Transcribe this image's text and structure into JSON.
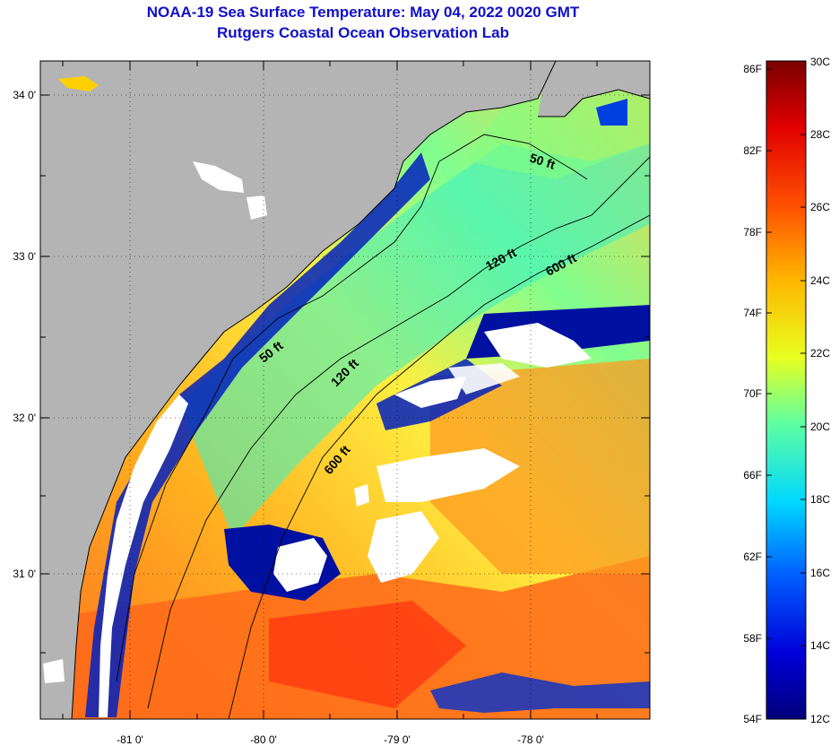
{
  "title": "NOAA-19 Sea Surface Temperature:  May 04, 2022 0020 GMT",
  "subtitle": "Rutgers Coastal Ocean Observation Lab",
  "map": {
    "lon_labels": [
      "-81 0'",
      "-80 0'",
      "-79 0'",
      "-78 0'"
    ],
    "lat_labels": [
      "34 0'",
      "33 0'",
      "32 0'",
      "31 0'"
    ],
    "depth_contours": [
      "50 ft",
      "120 ft",
      "600 ft",
      "50 ft",
      "120 ft",
      "600 ft"
    ],
    "colors": {
      "land": "#b4b4b4",
      "cloud": "#ffffff",
      "coast": "#000000"
    }
  },
  "colorbar": {
    "fahrenheit": [
      "86F",
      "82F",
      "78F",
      "74F",
      "70F",
      "66F",
      "62F",
      "58F",
      "54F"
    ],
    "celsius": [
      "30C",
      "28C",
      "26C",
      "24C",
      "22C",
      "20C",
      "18C",
      "16C",
      "14C",
      "12C"
    ]
  }
}
